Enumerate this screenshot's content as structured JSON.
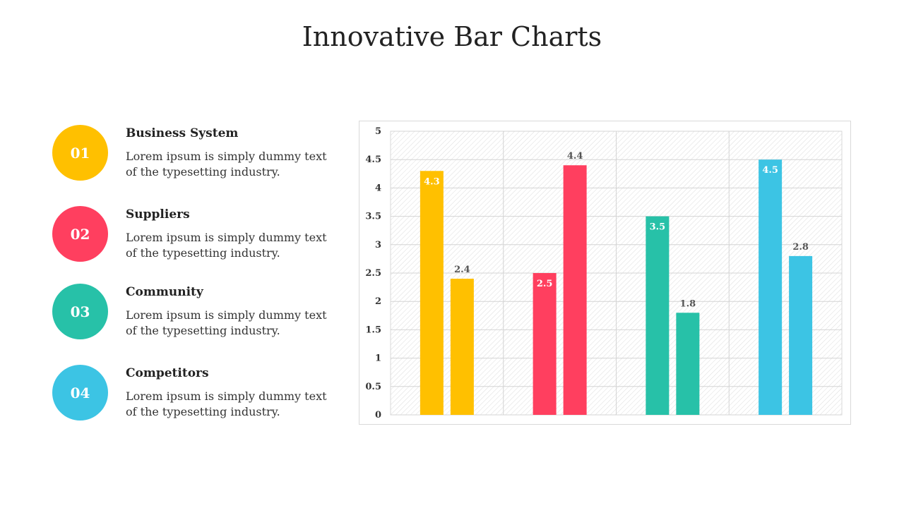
{
  "title": "Innovative Bar Charts",
  "items": [
    {
      "number": "01",
      "title": "Business System",
      "desc": "Lorem ipsum is simply dummy text of the typesetting industry.",
      "color": "#FFC000"
    },
    {
      "number": "02",
      "title": "Suppliers",
      "desc": "Lorem ipsum is simply dummy text of the typesetting industry.",
      "color": "#FF3F5F"
    },
    {
      "number": "03",
      "title": "Community",
      "desc": "Lorem ipsum is simply dummy text of the typesetting industry.",
      "color": "#27C1A8"
    },
    {
      "number": "04",
      "title": "Competitors",
      "desc": "Lorem ipsum is simply dummy text of the typesetting industry.",
      "color": "#3CC4E4"
    }
  ],
  "chart_data": {
    "type": "bar",
    "title": "",
    "xlabel": "",
    "ylabel": "",
    "ylim": [
      0,
      5
    ],
    "yticks": [
      "0",
      "0.5",
      "1",
      "1.5",
      "2",
      "2.5",
      "3",
      "3.5",
      "4",
      "4.5",
      "5"
    ],
    "grid": true,
    "legend": "none",
    "groups": [
      {
        "color": "#FFC000",
        "values": [
          4.3,
          2.4
        ],
        "labels": [
          "4.3",
          "2.4"
        ]
      },
      {
        "color": "#FF3F5F",
        "values": [
          2.5,
          4.4
        ],
        "labels": [
          "2.5",
          "4.4"
        ]
      },
      {
        "color": "#27C1A8",
        "values": [
          3.5,
          1.8
        ],
        "labels": [
          "3.5",
          "1.8"
        ]
      },
      {
        "color": "#3CC4E4",
        "values": [
          4.5,
          2.8
        ],
        "labels": [
          "4.5",
          "2.8"
        ]
      }
    ]
  }
}
